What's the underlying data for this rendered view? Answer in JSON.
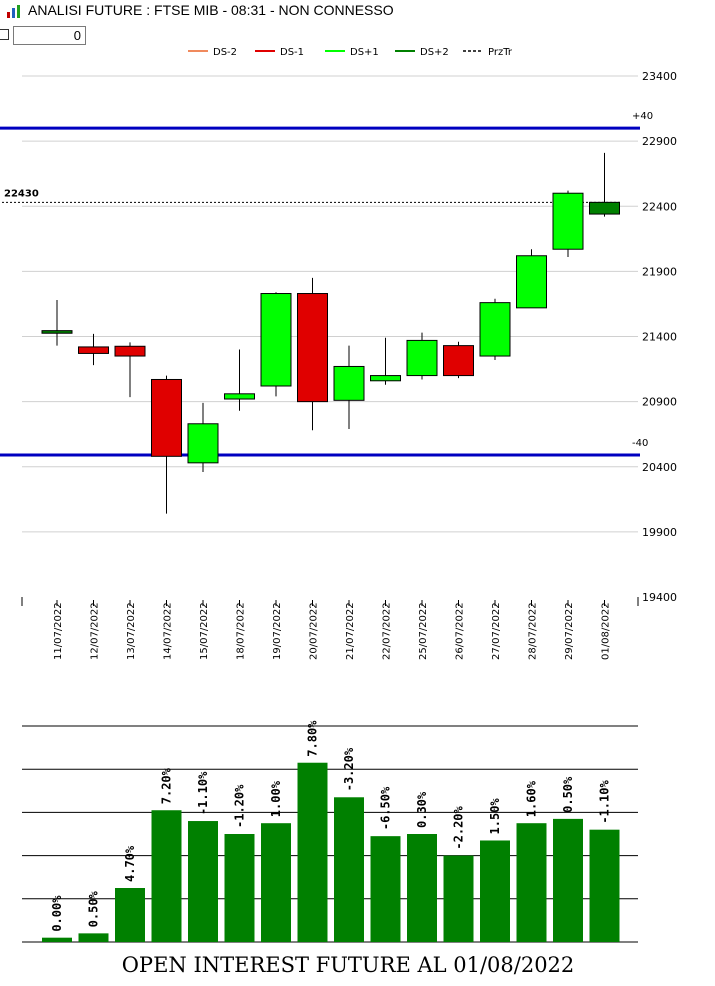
{
  "window": {
    "title": "ANALISI FUTURE : FTSE MIB - 08:31 - NON CONNESSO",
    "input_value": "0"
  },
  "colors": {
    "ds_minus2": "#f08a5d",
    "ds_minus1": "#e00000",
    "ds_plus1": "#00ff00",
    "ds_plus2": "#008000",
    "band": "#0000c0",
    "grid": "#d0d0d0",
    "bar": "#008000"
  },
  "chart_data": [
    {
      "type": "candlestick",
      "legend": [
        "DS-2",
        "DS-1",
        "DS+1",
        "DS+2",
        "PrzTr"
      ],
      "legend_position": "top-center",
      "yticks": [
        23400,
        22900,
        22400,
        21900,
        21400,
        20900,
        20400,
        19900,
        19400
      ],
      "ylim": [
        19400,
        23400
      ],
      "grid": true,
      "categories": [
        "11/07/2022",
        "12/07/2022",
        "13/07/2022",
        "14/07/2022",
        "15/07/2022",
        "18/07/2022",
        "19/07/2022",
        "20/07/2022",
        "21/07/2022",
        "22/07/2022",
        "25/07/2022",
        "26/07/2022",
        "27/07/2022",
        "28/07/2022",
        "29/07/2022",
        "01/08/2022"
      ],
      "candles": [
        {
          "open": 21425,
          "close": 21445,
          "high": 21680,
          "low": 21330,
          "class": "DS+2"
        },
        {
          "open": 21320,
          "close": 21270,
          "high": 21420,
          "low": 21180,
          "class": "DS-1"
        },
        {
          "open": 21325,
          "close": 21250,
          "high": 21355,
          "low": 20935,
          "class": "DS-1"
        },
        {
          "open": 21070,
          "close": 20480,
          "high": 21100,
          "low": 20040,
          "class": "DS-1"
        },
        {
          "open": 20430,
          "close": 20730,
          "high": 20890,
          "low": 20360,
          "class": "DS+1"
        },
        {
          "open": 20920,
          "close": 20960,
          "high": 21300,
          "low": 20830,
          "class": "DS+1"
        },
        {
          "open": 21020,
          "close": 21730,
          "high": 21740,
          "low": 20940,
          "class": "DS+1"
        },
        {
          "open": 21730,
          "close": 20900,
          "high": 21850,
          "low": 20680,
          "class": "DS-1"
        },
        {
          "open": 20910,
          "close": 21170,
          "high": 21330,
          "low": 20690,
          "class": "DS+1"
        },
        {
          "open": 21060,
          "close": 21100,
          "high": 21390,
          "low": 21030,
          "class": "DS+1"
        },
        {
          "open": 21100,
          "close": 21370,
          "high": 21430,
          "low": 21070,
          "class": "DS+1"
        },
        {
          "open": 21330,
          "close": 21100,
          "high": 21360,
          "low": 21080,
          "class": "DS-1"
        },
        {
          "open": 21250,
          "close": 21660,
          "high": 21690,
          "low": 21220,
          "class": "DS+1"
        },
        {
          "open": 21620,
          "close": 22020,
          "high": 22070,
          "low": 21620,
          "class": "DS+1"
        },
        {
          "open": 22070,
          "close": 22500,
          "high": 22520,
          "low": 22010,
          "class": "DS+1"
        },
        {
          "open": 22340,
          "close": 22430,
          "high": 22810,
          "low": 22320,
          "class": "DS+2"
        }
      ],
      "price_line": {
        "label": "22430",
        "value": 22430
      },
      "bands": [
        {
          "label": "+40",
          "value": 23000
        },
        {
          "label": "-40",
          "value": 20490
        }
      ]
    },
    {
      "type": "bar",
      "title": "OPEN INTEREST FUTURE AL 01/08/2022",
      "categories": [
        "11/07/2022",
        "12/07/2022",
        "13/07/2022",
        "14/07/2022",
        "15/07/2022",
        "18/07/2022",
        "19/07/2022",
        "20/07/2022",
        "21/07/2022",
        "22/07/2022",
        "25/07/2022",
        "26/07/2022",
        "27/07/2022",
        "28/07/2022",
        "29/07/2022",
        "01/08/2022"
      ],
      "labels": [
        "0.00%",
        "0.50%",
        "4.70%",
        "7.20%",
        "-1.10%",
        "-1.20%",
        "1.00%",
        "7.80%",
        "-3.20%",
        "-6.50%",
        "0.30%",
        "-2.20%",
        "1.50%",
        "1.60%",
        "0.50%",
        "-1.10%"
      ],
      "values": [
        2,
        4,
        25,
        61,
        56,
        50,
        55,
        83,
        67,
        49,
        50,
        40,
        47,
        55,
        57,
        52
      ],
      "ylim": [
        0,
        100
      ],
      "grid": true
    }
  ]
}
